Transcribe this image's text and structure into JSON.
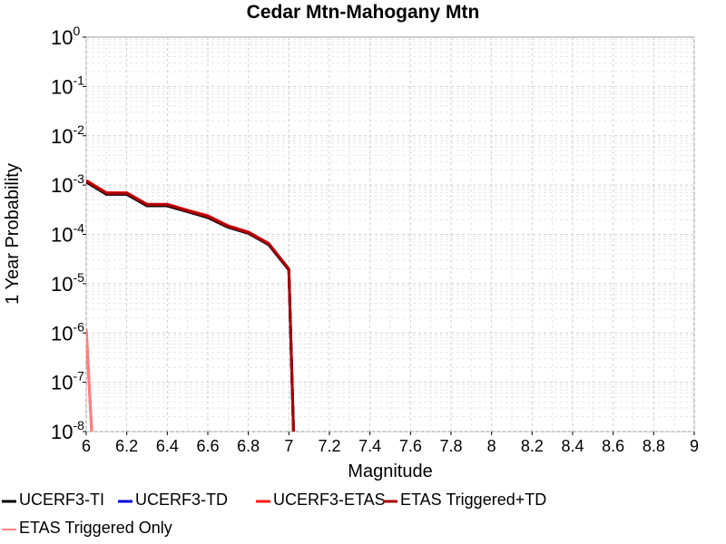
{
  "chart_data": {
    "type": "line",
    "title": "Cedar Mtn-Mahogany Mtn",
    "xlabel": "Magnitude",
    "ylabel": "1 Year Probability",
    "xlim": [
      6,
      9
    ],
    "ylim": [
      1e-08,
      1
    ],
    "y_scale": "log",
    "grid": true,
    "legend_placement": "bottom",
    "x_ticks": [
      "6",
      "6.2",
      "6.4",
      "6.6",
      "6.8",
      "7",
      "7.2",
      "7.4",
      "7.6",
      "7.8",
      "8",
      "8.2",
      "8.4",
      "8.6",
      "8.8",
      "9"
    ],
    "y_ticks": [
      {
        "base": "10",
        "exp": "0"
      },
      {
        "base": "10",
        "exp": "-1"
      },
      {
        "base": "10",
        "exp": "-2"
      },
      {
        "base": "10",
        "exp": "-3"
      },
      {
        "base": "10",
        "exp": "-4"
      },
      {
        "base": "10",
        "exp": "-5"
      },
      {
        "base": "10",
        "exp": "-6"
      },
      {
        "base": "10",
        "exp": "-7"
      },
      {
        "base": "10",
        "exp": "-8"
      }
    ],
    "series": [
      {
        "name": "UCERF3-TI",
        "color": "#000000",
        "x": [
          6.0,
          6.1,
          6.2,
          6.3,
          6.4,
          6.5,
          6.6,
          6.7,
          6.8,
          6.9,
          7.0,
          7.03
        ],
        "y": [
          0.00115,
          0.00065,
          0.00065,
          0.00038,
          0.00038,
          0.00029,
          0.00022,
          0.00014,
          0.000105,
          6.2e-05,
          1.9e-05,
          1e-09
        ]
      },
      {
        "name": "UCERF3-TD",
        "color": "#0000dd",
        "x": [
          6.0,
          6.1,
          6.2,
          6.3,
          6.4,
          6.5,
          6.6,
          6.7,
          6.8,
          6.9,
          7.0,
          7.03
        ],
        "y": [
          0.00115,
          0.00065,
          0.00065,
          0.00038,
          0.00038,
          0.00029,
          0.00022,
          0.00014,
          0.000105,
          6.2e-05,
          1.9e-05,
          1e-09
        ]
      },
      {
        "name": "UCERF3-ETAS",
        "color": "#ff1a1a",
        "x": [
          6.0,
          6.1,
          6.2,
          6.3,
          6.4,
          6.5,
          6.6,
          6.7,
          6.8,
          6.9,
          7.0,
          7.03
        ],
        "y": [
          0.00125,
          0.0007,
          0.0007,
          0.00041,
          0.00041,
          0.00031,
          0.00024,
          0.00015,
          0.000112,
          6.6e-05,
          2e-05,
          1e-09
        ]
      },
      {
        "name": "ETAS Triggered+TD",
        "color": "#aa0000",
        "x": [
          6.0,
          6.1,
          6.2,
          6.3,
          6.4,
          6.5,
          6.6,
          6.7,
          6.8,
          6.9,
          7.0,
          7.03
        ],
        "y": [
          0.0012,
          0.00068,
          0.00068,
          0.0004,
          0.0004,
          0.0003,
          0.00023,
          0.000145,
          0.000108,
          6.4e-05,
          1.95e-05,
          1e-09
        ]
      },
      {
        "name": "ETAS Triggered Only",
        "color": "#ff8080",
        "x": [
          6.0,
          6.04
        ],
        "y": [
          1.2e-06,
          1e-09
        ]
      }
    ],
    "extra_lines": [
      {
        "color": "#ff1a1a",
        "x": [
          6.0,
          6.04
        ],
        "y": [
          1.2e-06,
          1e-09
        ]
      }
    ]
  }
}
